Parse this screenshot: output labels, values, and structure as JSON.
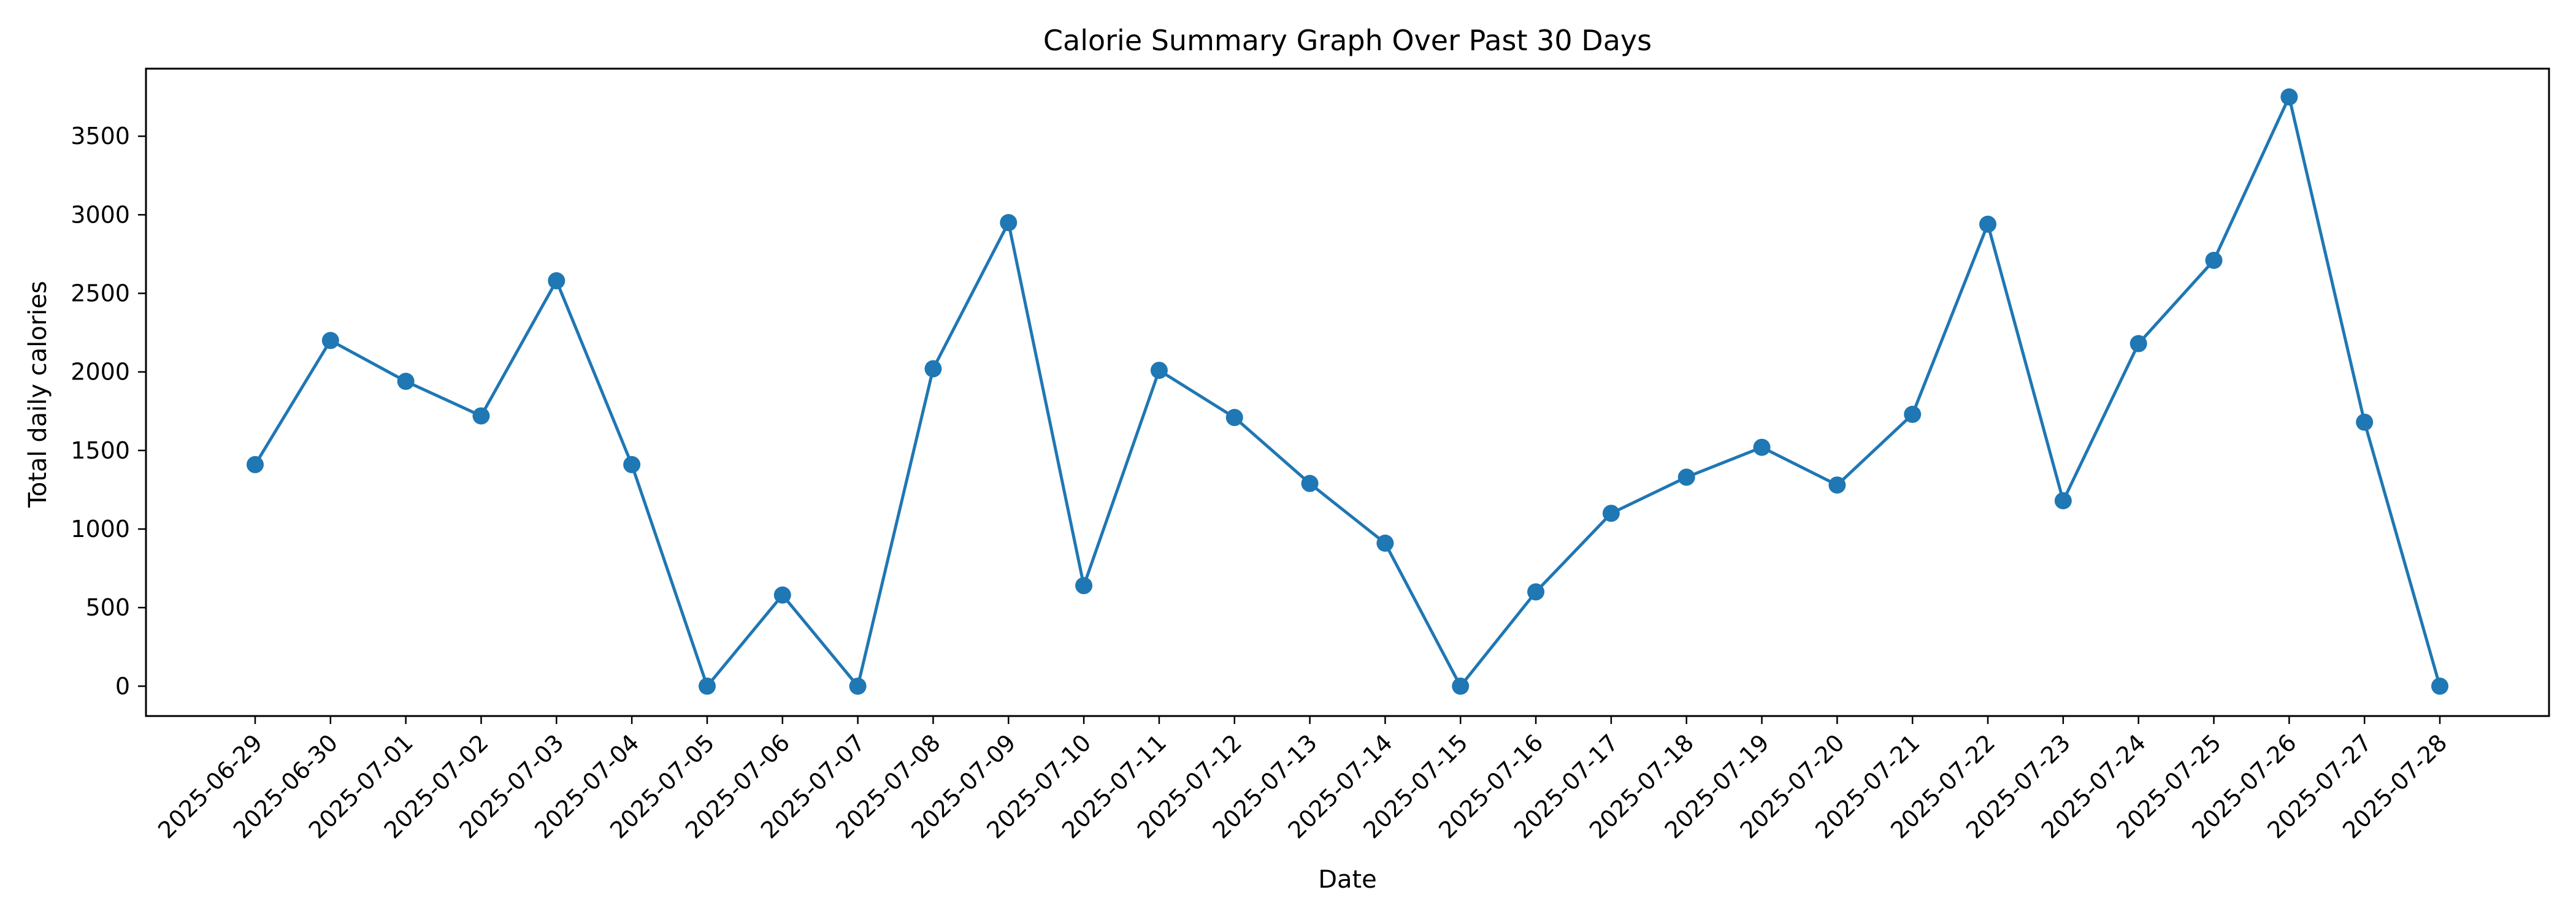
{
  "chart_data": {
    "type": "line",
    "title": "Calorie Summary Graph Over Past 30 Days",
    "xlabel": "Date",
    "ylabel": "Total daily calories",
    "ylim": [
      -190,
      3930
    ],
    "yticks": [
      0,
      500,
      1000,
      1500,
      2000,
      2500,
      3000,
      3500
    ],
    "grid": false,
    "legend": "none",
    "x": [
      "2025-06-29",
      "2025-06-30",
      "2025-07-01",
      "2025-07-02",
      "2025-07-03",
      "2025-07-04",
      "2025-07-05",
      "2025-07-06",
      "2025-07-07",
      "2025-07-08",
      "2025-07-09",
      "2025-07-10",
      "2025-07-11",
      "2025-07-12",
      "2025-07-13",
      "2025-07-14",
      "2025-07-15",
      "2025-07-16",
      "2025-07-17",
      "2025-07-18",
      "2025-07-19",
      "2025-07-20",
      "2025-07-21",
      "2025-07-22",
      "2025-07-23",
      "2025-07-24",
      "2025-07-25",
      "2025-07-26",
      "2025-07-27",
      "2025-07-28"
    ],
    "series": [
      {
        "values": [
          1410,
          2200,
          1940,
          1720,
          2580,
          1410,
          0,
          580,
          0,
          2020,
          2950,
          640,
          2010,
          1710,
          1290,
          910,
          0,
          600,
          1100,
          1330,
          1520,
          1280,
          1730,
          2940,
          1180,
          2180,
          2710,
          3750,
          1680,
          0
        ],
        "color": "#1f77b4"
      }
    ]
  }
}
